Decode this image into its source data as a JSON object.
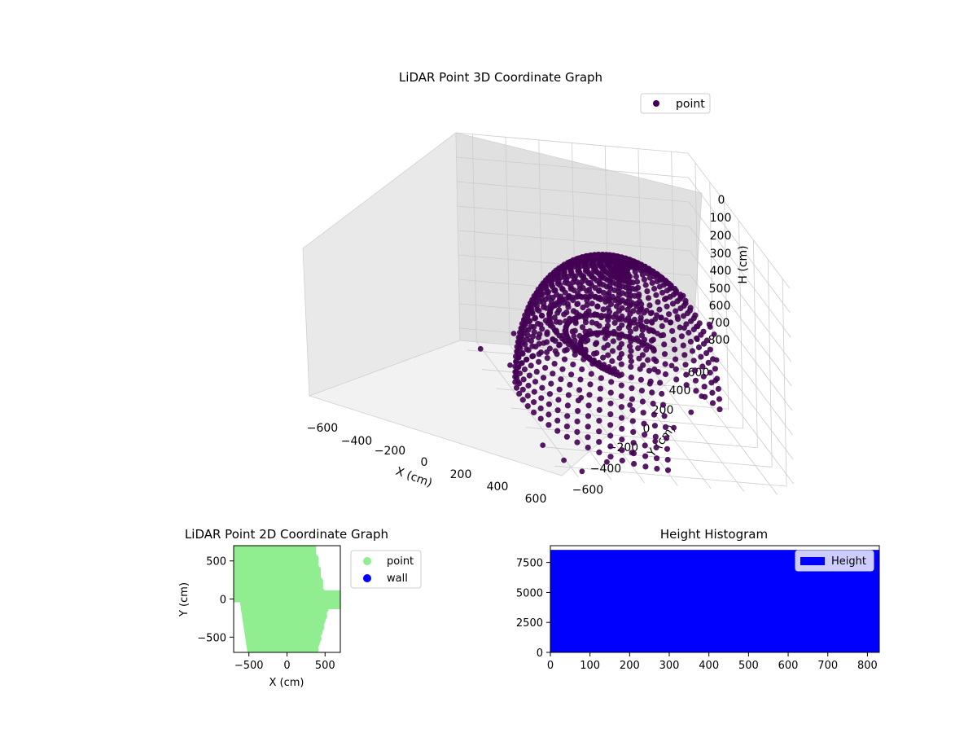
{
  "colors": {
    "point3d": "#440154",
    "point2d": "#90ee90",
    "wall": "#0000ff",
    "hist": "#0000ff",
    "pane_light": "#f2f2f2",
    "pane_mid": "#e9e9e9",
    "pane_dark": "#e0e0e0",
    "grid": "#cccccc"
  },
  "chart_data": [
    {
      "type": "scatter",
      "projection": "3d",
      "title": "LiDAR Point 3D Coordinate Graph",
      "xlabel": "X (cm)",
      "ylabel": "Y (cm)",
      "zlabel": "H (cm)",
      "xlim": [
        -700,
        700
      ],
      "ylim": [
        -700,
        700
      ],
      "zlim": [
        850,
        0
      ],
      "xticks": [
        "−600",
        "−400",
        "−200",
        "0",
        "200",
        "400",
        "600"
      ],
      "yticks": [
        "−600",
        "−400",
        "−200",
        "0",
        "200",
        "400",
        "600"
      ],
      "zticks": [
        "0",
        "100",
        "200",
        "300",
        "400",
        "500",
        "600",
        "700",
        "800"
      ],
      "grid": true,
      "legend": {
        "position": "upper-right",
        "entries": [
          "point"
        ]
      },
      "series": [
        {
          "name": "point",
          "shape": "hemispherical scan: arcs of points at azimuth steps, elevation rising from rim (H≈800) toward top (H≈0), plus scattered outliers",
          "arcs": {
            "azimuth_start_deg": 100,
            "azimuth_end_deg": 360,
            "azimuth_step_deg": 6,
            "radius_max": 650,
            "h_max": 820
          },
          "scattered_points": [
            [
              -640,
              -400,
              780
            ],
            [
              -560,
              -200,
              760
            ],
            [
              -520,
              120,
              700
            ],
            [
              -460,
              360,
              620
            ],
            [
              -380,
              520,
              600
            ],
            [
              -300,
              560,
              560
            ],
            [
              -200,
              600,
              520
            ],
            [
              -120,
              560,
              480
            ],
            [
              40,
              520,
              460
            ],
            [
              160,
              480,
              520
            ],
            [
              280,
              420,
              560
            ],
            [
              360,
              300,
              600
            ],
            [
              440,
              200,
              640
            ],
            [
              520,
              60,
              680
            ],
            [
              580,
              -80,
              720
            ],
            [
              620,
              -240,
              760
            ],
            [
              640,
              -400,
              800
            ],
            [
              660,
              -560,
              840
            ],
            [
              500,
              -600,
              860
            ],
            [
              300,
              -640,
              880
            ],
            [
              -600,
              -620,
              840
            ],
            [
              -660,
              -120,
              820
            ],
            [
              -420,
              -520,
              830
            ],
            [
              -220,
              -560,
              820
            ],
            [
              40,
              300,
              400
            ],
            [
              120,
              200,
              300
            ],
            [
              -60,
              380,
              350
            ],
            [
              220,
              340,
              420
            ],
            [
              320,
              140,
              500
            ],
            [
              380,
              -20,
              560
            ],
            [
              420,
              -160,
              640
            ],
            [
              -180,
              260,
              500
            ],
            [
              -260,
              140,
              560
            ],
            [
              -340,
              20,
              620
            ],
            [
              -400,
              -140,
              680
            ],
            [
              60,
              -300,
              760
            ]
          ]
        }
      ]
    },
    {
      "type": "scatter",
      "title": "LiDAR Point 2D Coordinate Graph",
      "xlabel": "X (cm)",
      "ylabel": "Y (cm)",
      "xlim": [
        -700,
        700
      ],
      "ylim": [
        -700,
        700
      ],
      "xticks": [
        -500,
        0,
        500
      ],
      "yticks": [
        -500,
        0,
        500
      ],
      "legend": {
        "position": "outside-right",
        "entries": [
          "point",
          "wall"
        ]
      },
      "series": [
        {
          "name": "point",
          "fill": "dense cloud covering most of the plot"
        },
        {
          "name": "wall",
          "points": []
        }
      ]
    },
    {
      "type": "bar",
      "title": "Height Histogram",
      "xlim": [
        0,
        830
      ],
      "ylim": [
        0,
        8900
      ],
      "xticks": [
        0,
        100,
        200,
        300,
        400,
        500,
        600,
        700,
        800
      ],
      "yticks": [
        0,
        2500,
        5000,
        7500
      ],
      "legend": {
        "position": "upper-right",
        "entries": [
          "Height"
        ]
      },
      "series": [
        {
          "name": "Height",
          "bin_from": 0,
          "bin_to": 830,
          "count": 8550
        }
      ]
    }
  ]
}
